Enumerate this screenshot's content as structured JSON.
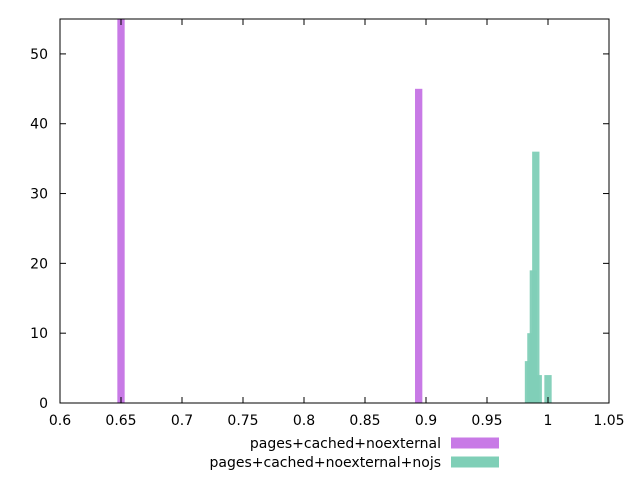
{
  "chart_data": {
    "type": "bar",
    "xlim": [
      0.6,
      1.05
    ],
    "ylim": [
      0,
      55
    ],
    "x_ticks": [
      "0.6",
      "0.65",
      "0.7",
      "0.75",
      "0.8",
      "0.85",
      "0.9",
      "0.95",
      "1",
      "1.05"
    ],
    "y_ticks": [
      "0",
      "10",
      "20",
      "30",
      "40",
      "50"
    ],
    "grid": false,
    "legend_position": "bottom",
    "bar_width": 0.006,
    "series": [
      {
        "name": "pages+cached+noexternal",
        "color": "#c87ae6",
        "x": [
          0.65,
          0.894
        ],
        "values": [
          55,
          45
        ]
      },
      {
        "name": "pages+cached+noexternal+nojs",
        "color": "#7fcfb7",
        "x": [
          0.984,
          0.986,
          0.988,
          0.99,
          0.992,
          1.0
        ],
        "values": [
          6,
          10,
          19,
          36,
          4,
          4
        ]
      }
    ]
  }
}
